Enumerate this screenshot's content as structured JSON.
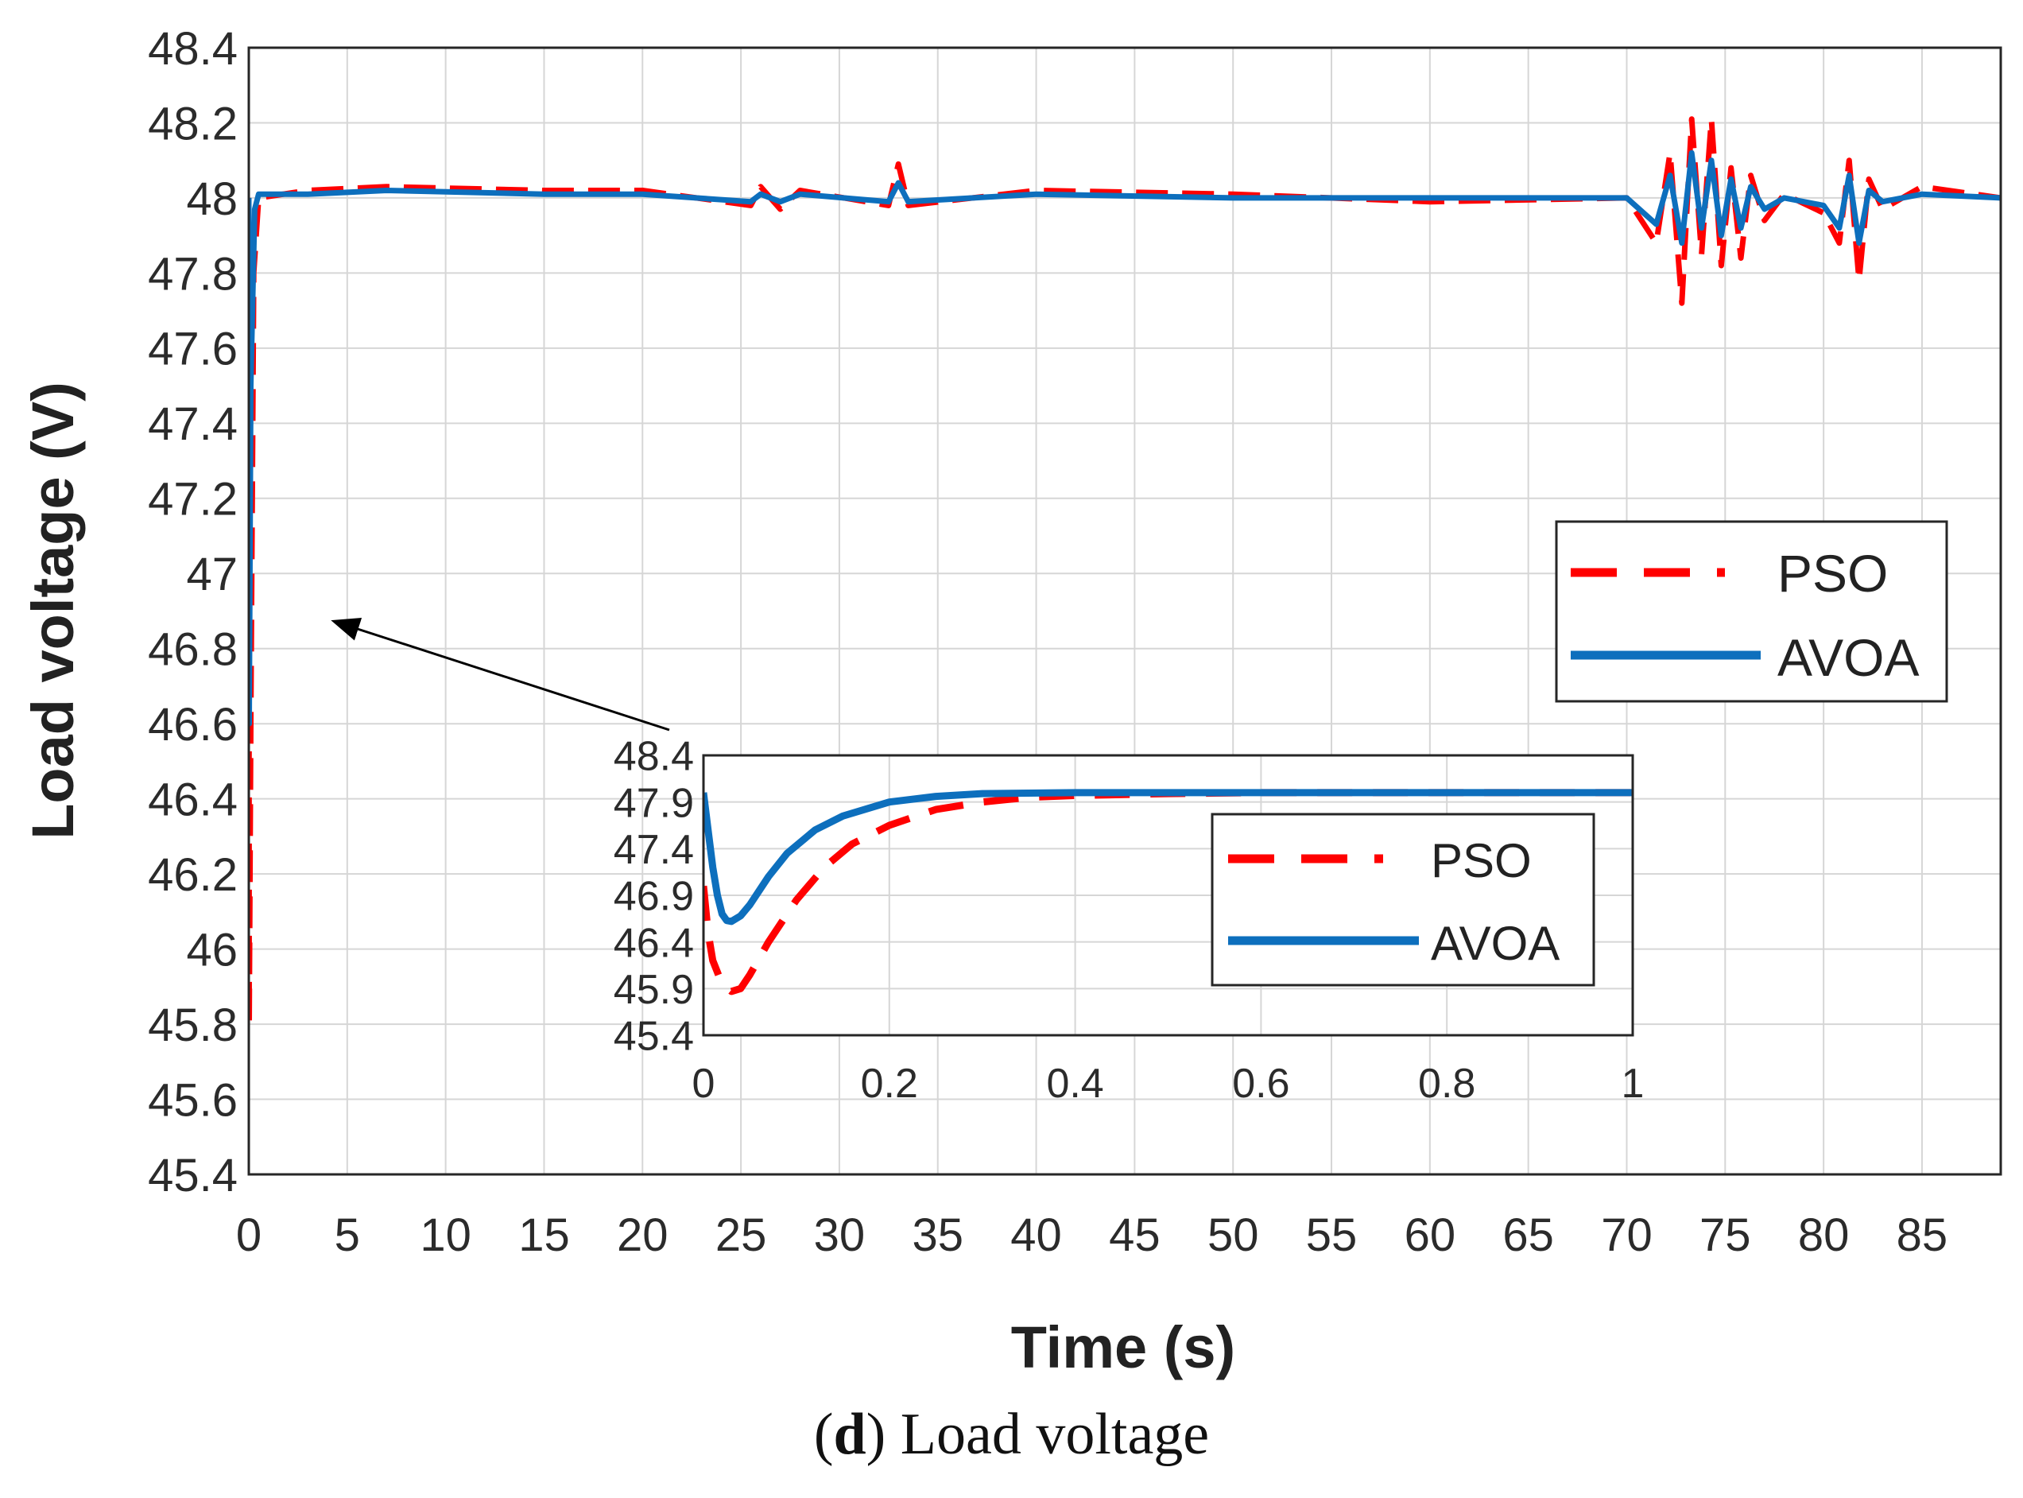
{
  "chart_data": [
    {
      "type": "line",
      "name": "main",
      "xlabel": "Time (s)",
      "ylabel": "Load voltage (V)",
      "xlim": [
        0,
        89
      ],
      "ylim": [
        45.4,
        48.4
      ],
      "xticks": [
        0,
        5,
        10,
        15,
        20,
        25,
        30,
        35,
        40,
        45,
        50,
        55,
        60,
        65,
        70,
        75,
        80,
        85
      ],
      "yticks": [
        45.4,
        45.6,
        45.8,
        46,
        46.2,
        46.4,
        46.6,
        46.8,
        47,
        47.2,
        47.4,
        47.6,
        47.8,
        48,
        48.2,
        48.4
      ],
      "xtick_labels": [
        "0",
        "5",
        "10",
        "15",
        "20",
        "25",
        "30",
        "35",
        "40",
        "45",
        "50",
        "55",
        "60",
        "65",
        "70",
        "75",
        "80",
        "85"
      ],
      "ytick_labels": [
        "45.4",
        "45.6",
        "45.8",
        "46",
        "46.2",
        "46.4",
        "46.6",
        "46.8",
        "47",
        "47.2",
        "47.4",
        "47.6",
        "47.8",
        "48",
        "48.2",
        "48.4"
      ],
      "grid": true,
      "legend_position": "right-middle",
      "series": [
        {
          "name": "PSO",
          "color": "#ff0000",
          "style": "dashed",
          "x": [
            0,
            0.02,
            0.1,
            0.25,
            0.5,
            3,
            7,
            15,
            20,
            25.5,
            26,
            27,
            28,
            32.5,
            33,
            33.5,
            40,
            50,
            60,
            70,
            71.5,
            72.2,
            72.8,
            73.3,
            73.8,
            74.3,
            74.8,
            75.3,
            75.8,
            76.3,
            77,
            78,
            80,
            80.8,
            81.3,
            81.8,
            82.3,
            83,
            85,
            89
          ],
          "y": [
            48.0,
            45.8,
            46.6,
            47.8,
            48.0,
            48.02,
            48.03,
            48.02,
            48.02,
            47.98,
            48.03,
            47.97,
            48.02,
            47.98,
            48.09,
            47.98,
            48.02,
            48.01,
            47.99,
            48.0,
            47.88,
            48.12,
            47.72,
            48.21,
            47.85,
            48.21,
            47.82,
            48.08,
            47.84,
            48.06,
            47.94,
            48.01,
            47.96,
            47.88,
            48.1,
            47.78,
            48.05,
            47.97,
            48.03,
            48.0
          ]
        },
        {
          "name": "AVOA",
          "color": "#0d6fbd",
          "style": "solid",
          "x": [
            0,
            0.02,
            0.1,
            0.3,
            0.5,
            3,
            7,
            15,
            20,
            25.5,
            26,
            27,
            28,
            32.5,
            33,
            33.5,
            40,
            50,
            60,
            70,
            71.5,
            72.2,
            72.8,
            73.3,
            73.8,
            74.3,
            74.8,
            75.3,
            75.8,
            76.3,
            77,
            78,
            80,
            80.8,
            81.3,
            81.8,
            82.3,
            83,
            85,
            89
          ],
          "y": [
            48.0,
            46.6,
            47.5,
            47.97,
            48.01,
            48.01,
            48.02,
            48.01,
            48.01,
            47.99,
            48.01,
            47.99,
            48.01,
            47.99,
            48.04,
            47.99,
            48.01,
            48.0,
            48.0,
            48.0,
            47.93,
            48.06,
            47.88,
            48.12,
            47.92,
            48.1,
            47.9,
            48.05,
            47.92,
            48.03,
            47.97,
            48.0,
            47.98,
            47.92,
            48.06,
            47.88,
            48.02,
            47.99,
            48.01,
            48.0
          ]
        }
      ]
    },
    {
      "type": "line",
      "name": "inset",
      "xlim": [
        0,
        1
      ],
      "ylim": [
        45.4,
        48.4
      ],
      "xticks": [
        0,
        0.2,
        0.4,
        0.6,
        0.8,
        1
      ],
      "yticks": [
        45.4,
        45.9,
        46.4,
        46.9,
        47.4,
        47.9,
        48.4
      ],
      "xtick_labels": [
        "0",
        "0.2",
        "0.4",
        "0.6",
        "0.8",
        "1"
      ],
      "ytick_labels": [
        "45.4",
        "45.9",
        "46.4",
        "46.9",
        "47.4",
        "47.9",
        "48.4"
      ],
      "grid": true,
      "legend_position": "top-right",
      "series": [
        {
          "name": "PSO",
          "color": "#ff0000",
          "style": "dashed",
          "x": [
            0,
            0.005,
            0.01,
            0.02,
            0.03,
            0.04,
            0.05,
            0.07,
            0.1,
            0.13,
            0.16,
            0.2,
            0.25,
            0.3,
            0.35,
            0.4,
            0.5,
            0.6,
            0.7,
            0.8,
            0.9,
            1.0
          ],
          "y": [
            47.0,
            46.5,
            46.2,
            45.95,
            45.87,
            45.9,
            46.05,
            46.4,
            46.85,
            47.2,
            47.45,
            47.65,
            47.82,
            47.9,
            47.95,
            47.97,
            47.99,
            48.0,
            48.0,
            48.0,
            48.0,
            48.0
          ]
        },
        {
          "name": "AVOA",
          "color": "#0d6fbd",
          "style": "solid",
          "x": [
            0,
            0.005,
            0.01,
            0.015,
            0.02,
            0.025,
            0.03,
            0.04,
            0.05,
            0.07,
            0.09,
            0.12,
            0.15,
            0.2,
            0.25,
            0.3,
            0.4,
            0.5,
            0.6,
            0.7,
            0.8,
            0.9,
            1.0
          ],
          "y": [
            48.0,
            47.6,
            47.2,
            46.9,
            46.7,
            46.63,
            46.62,
            46.68,
            46.8,
            47.1,
            47.35,
            47.6,
            47.75,
            47.9,
            47.96,
            47.99,
            48.0,
            48.0,
            48.0,
            48.0,
            48.0,
            48.0,
            48.0
          ]
        }
      ]
    }
  ],
  "caption": {
    "panel": "d",
    "text": "Load voltage"
  }
}
